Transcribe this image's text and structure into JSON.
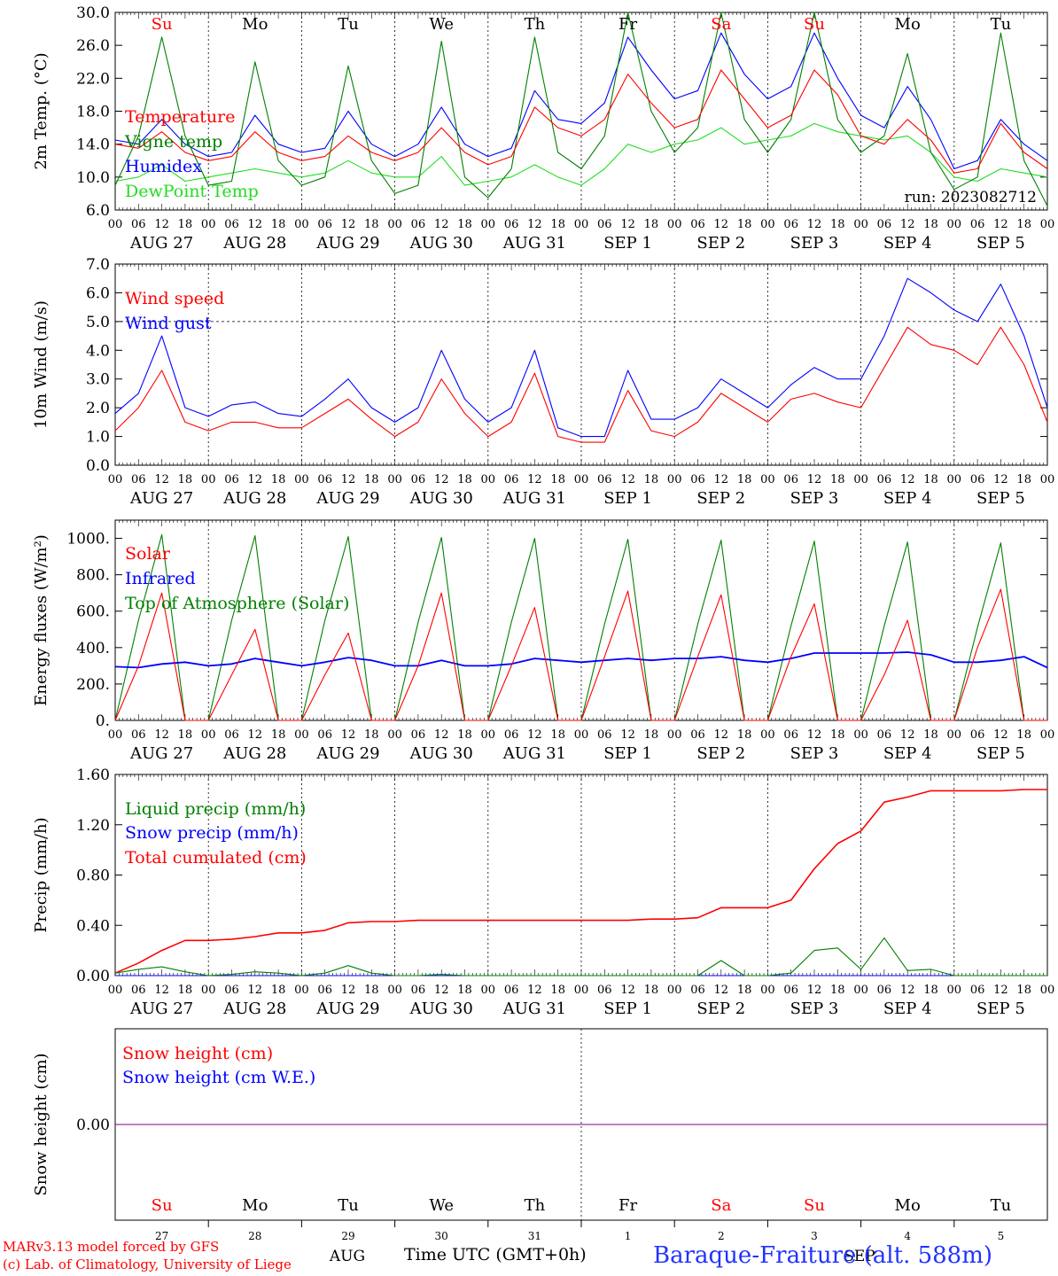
{
  "run_label": "run: 2023082712",
  "days": [
    "Su",
    "Mo",
    "Tu",
    "We",
    "Th",
    "Fr",
    "Sa",
    "Su",
    "Mo",
    "Tu"
  ],
  "day_colors": [
    "#ff0000",
    "#000000",
    "#000000",
    "#000000",
    "#000000",
    "#000000",
    "#ff0000",
    "#ff0000",
    "#000000",
    "#000000"
  ],
  "date_labels": [
    "AUG 27",
    "AUG 28",
    "AUG 29",
    "AUG 30",
    "AUG 31",
    "SEP  1",
    "SEP  2",
    "SEP  3",
    "SEP  4",
    "SEP  5"
  ],
  "hour_ticks": [
    "00",
    "06",
    "12",
    "18"
  ],
  "bottom_day_numbers": [
    "27",
    "28",
    "29",
    "30",
    "31",
    "1",
    "2",
    "3",
    "4",
    "5"
  ],
  "month_labels": [
    "AUG",
    "SEP"
  ],
  "footer": {
    "model": "MARv3.13 model forced by GFS",
    "credit": "(c) Lab. of Climatology, University of Liege",
    "axis_title": "Time UTC (GMT+0h)",
    "station": "Baraque-Fraiture (alt. 588m)"
  },
  "colors": {
    "red": "#ff0000",
    "green": "#008000",
    "blue": "#0000ff",
    "lightgreen": "#22dd22",
    "purple": "#800080"
  },
  "chart_data": [
    {
      "type": "line",
      "ylabel": "2m Temp. (°C)",
      "ylim": [
        6,
        30
      ],
      "yticks": [
        "6.0",
        "10.0",
        "14.0",
        "18.0",
        "22.0",
        "26.0",
        "30.0"
      ],
      "x": [
        0,
        6,
        12,
        18,
        24,
        30,
        36,
        42,
        48,
        54,
        60,
        66,
        72,
        78,
        84,
        90,
        96,
        102,
        108,
        114,
        120,
        126,
        132,
        138,
        144,
        150,
        156,
        162,
        168,
        174,
        180,
        186,
        192,
        198,
        204,
        210,
        216,
        222,
        228,
        234,
        240
      ],
      "series": [
        {
          "name": "Temperature",
          "color": "#ff0000",
          "values": [
            14,
            13.5,
            15.5,
            13,
            12,
            12.5,
            15.5,
            13,
            12,
            12.5,
            15,
            13,
            12,
            13,
            16,
            13,
            11.5,
            12.5,
            18.5,
            16,
            15,
            17,
            22.5,
            19,
            16,
            17,
            23,
            19.5,
            16,
            17.5,
            23,
            20,
            15,
            14,
            17,
            14.5,
            10.5,
            11,
            16.5,
            13,
            11
          ]
        },
        {
          "name": "Vigne temp",
          "color": "#008000",
          "values": [
            9,
            15,
            27,
            15,
            9,
            9.5,
            24,
            12,
            9,
            10,
            23.5,
            12,
            8,
            9,
            26.5,
            10,
            7.5,
            11,
            27,
            13,
            11,
            15,
            30,
            18,
            13,
            16,
            30,
            17,
            13,
            17,
            30,
            17,
            13,
            15,
            25,
            13,
            8.5,
            10,
            27.5,
            12,
            6.5
          ]
        },
        {
          "name": "Humidex",
          "color": "#0000ff",
          "values": [
            14.5,
            14,
            17,
            14,
            12.5,
            13,
            17.5,
            14,
            13,
            13.5,
            18,
            14,
            12.5,
            14,
            18.5,
            14,
            12.5,
            13.5,
            20.5,
            17,
            16.5,
            19,
            27,
            23,
            19.5,
            20.5,
            27.5,
            22.5,
            19.5,
            21,
            27.5,
            22,
            17.5,
            16,
            21,
            17,
            11,
            12,
            17,
            14,
            12
          ]
        },
        {
          "name": "DewPoint Temp",
          "color": "#22dd22",
          "values": [
            9.5,
            10,
            11.5,
            9.5,
            10,
            10.5,
            11,
            10.5,
            10,
            10.5,
            12,
            10.5,
            10,
            10,
            12.5,
            9,
            9.5,
            10,
            11.5,
            10,
            9,
            11,
            14,
            13,
            14,
            14.5,
            16,
            14,
            14.5,
            15,
            16.5,
            15.5,
            15,
            14.5,
            15,
            13,
            10,
            9.5,
            11,
            10.5,
            10
          ]
        }
      ]
    },
    {
      "type": "line",
      "ylabel": "10m Wind (m/s)",
      "ylim": [
        0,
        7
      ],
      "yticks": [
        "0.0",
        "1.0",
        "2.0",
        "3.0",
        "4.0",
        "5.0",
        "6.0",
        "7.0"
      ],
      "x": [
        0,
        6,
        12,
        18,
        24,
        30,
        36,
        42,
        48,
        54,
        60,
        66,
        72,
        78,
        84,
        90,
        96,
        102,
        108,
        114,
        120,
        126,
        132,
        138,
        144,
        150,
        156,
        162,
        168,
        174,
        180,
        186,
        192,
        198,
        204,
        210,
        216,
        222,
        228,
        234,
        240
      ],
      "series": [
        {
          "name": "Wind speed",
          "color": "#ff0000",
          "values": [
            1.2,
            2,
            3.3,
            1.5,
            1.2,
            1.5,
            1.5,
            1.3,
            1.3,
            1.8,
            2.3,
            1.6,
            1,
            1.5,
            3,
            1.8,
            1,
            1.5,
            3.2,
            1,
            0.8,
            0.8,
            2.6,
            1.2,
            1,
            1.5,
            2.5,
            2,
            1.5,
            2.3,
            2.5,
            2.2,
            2,
            3.4,
            4.8,
            4.2,
            4,
            3.5,
            4.8,
            3.5,
            1.5
          ]
        },
        {
          "name": "Wind gust",
          "color": "#0000ff",
          "values": [
            1.8,
            2.5,
            4.5,
            2,
            1.7,
            2.1,
            2.2,
            1.8,
            1.7,
            2.3,
            3,
            2,
            1.5,
            2,
            4,
            2.3,
            1.5,
            2,
            4,
            1.3,
            1,
            1,
            3.3,
            1.6,
            1.6,
            2,
            3,
            2.5,
            2,
            2.8,
            3.4,
            3,
            3,
            4.5,
            6.5,
            6,
            5.4,
            5,
            6.3,
            4.5,
            2
          ]
        }
      ],
      "reference_line": 5
    },
    {
      "type": "line",
      "ylabel": "Energy fluxes (W/m²)",
      "ylim": [
        0,
        1100
      ],
      "yticks": [
        "0.",
        "200.",
        "400.",
        "600.",
        "800.",
        "1000."
      ],
      "x": [
        0,
        6,
        12,
        18,
        24,
        30,
        36,
        42,
        48,
        54,
        60,
        66,
        72,
        78,
        84,
        90,
        96,
        102,
        108,
        114,
        120,
        126,
        132,
        138,
        144,
        150,
        156,
        162,
        168,
        174,
        180,
        186,
        192,
        198,
        204,
        210,
        216,
        222,
        228,
        234,
        240
      ],
      "series": [
        {
          "name": "Solar",
          "color": "#ff0000",
          "values": [
            0,
            300,
            700,
            0,
            0,
            250,
            500,
            0,
            0,
            250,
            480,
            0,
            0,
            300,
            700,
            0,
            0,
            300,
            620,
            0,
            0,
            350,
            710,
            0,
            0,
            350,
            690,
            0,
            0,
            350,
            640,
            0,
            0,
            250,
            550,
            0,
            0,
            400,
            720,
            0,
            0
          ]
        },
        {
          "name": "Infrared",
          "color": "#0000ff",
          "values": [
            295,
            290,
            310,
            320,
            300,
            310,
            340,
            320,
            300,
            320,
            345,
            330,
            300,
            300,
            330,
            300,
            300,
            310,
            340,
            330,
            320,
            330,
            340,
            330,
            340,
            340,
            350,
            330,
            320,
            340,
            370,
            370,
            370,
            370,
            375,
            360,
            320,
            320,
            330,
            350,
            290
          ]
        },
        {
          "name": "Top of Atmosphere (Solar)",
          "color": "#008000",
          "values": [
            0,
            550,
            1020,
            0,
            0,
            550,
            1015,
            0,
            0,
            550,
            1010,
            0,
            0,
            540,
            1005,
            0,
            0,
            540,
            1000,
            0,
            0,
            530,
            995,
            0,
            0,
            530,
            990,
            0,
            0,
            520,
            985,
            0,
            0,
            520,
            980,
            0,
            0,
            510,
            975,
            0,
            0
          ]
        }
      ]
    },
    {
      "type": "line",
      "ylabel": "Precip (mm/h)",
      "ylim": [
        0,
        1.6
      ],
      "yticks": [
        "0.00",
        "0.40",
        "0.80",
        "1.20",
        "1.60"
      ],
      "x": [
        0,
        6,
        12,
        18,
        24,
        30,
        36,
        42,
        48,
        54,
        60,
        66,
        72,
        78,
        84,
        90,
        96,
        102,
        108,
        114,
        120,
        126,
        132,
        138,
        144,
        150,
        156,
        162,
        168,
        174,
        180,
        186,
        192,
        198,
        204,
        210,
        216,
        222,
        228,
        234,
        240
      ],
      "series": [
        {
          "name": "Liquid precip (mm/h)",
          "color": "#008000",
          "values": [
            0.02,
            0.05,
            0.07,
            0.03,
            0,
            0.01,
            0.03,
            0.02,
            0,
            0.02,
            0.08,
            0.02,
            0,
            0,
            0.01,
            0,
            0,
            0,
            0,
            0,
            0,
            0,
            0,
            0,
            0,
            0,
            0.12,
            0,
            0,
            0.02,
            0.2,
            0.22,
            0.05,
            0.3,
            0.04,
            0.05,
            0,
            0,
            0,
            0,
            0
          ]
        },
        {
          "name": "Snow precip (mm/h)",
          "color": "#0000ff",
          "values": [
            0,
            0,
            0,
            0,
            0,
            0,
            0,
            0,
            0,
            0,
            0,
            0,
            0,
            0,
            0,
            0,
            0,
            0,
            0,
            0,
            0,
            0,
            0,
            0,
            0,
            0,
            0,
            0,
            0,
            0,
            0,
            0,
            0,
            0,
            0,
            0,
            0,
            0,
            0,
            0,
            0
          ]
        },
        {
          "name": "Total cumulated (cm)",
          "color": "#ff0000",
          "values": [
            0.02,
            0.1,
            0.2,
            0.28,
            0.28,
            0.29,
            0.31,
            0.34,
            0.34,
            0.36,
            0.42,
            0.43,
            0.43,
            0.44,
            0.44,
            0.44,
            0.44,
            0.44,
            0.44,
            0.44,
            0.44,
            0.44,
            0.44,
            0.45,
            0.45,
            0.46,
            0.54,
            0.54,
            0.54,
            0.6,
            0.85,
            1.05,
            1.15,
            1.38,
            1.42,
            1.47,
            1.47,
            1.47,
            1.47,
            1.48,
            1.48
          ]
        }
      ]
    },
    {
      "type": "line",
      "ylabel": "Snow height (cm)",
      "yticks": [
        "0.00"
      ],
      "x": [
        0,
        240
      ],
      "series": [
        {
          "name": "Snow height (cm)",
          "color": "#ff0000",
          "values": [
            0,
            0
          ]
        },
        {
          "name": "Snow height (cm W.E.)",
          "color": "#0000ff",
          "values": [
            0,
            0
          ]
        }
      ]
    }
  ]
}
